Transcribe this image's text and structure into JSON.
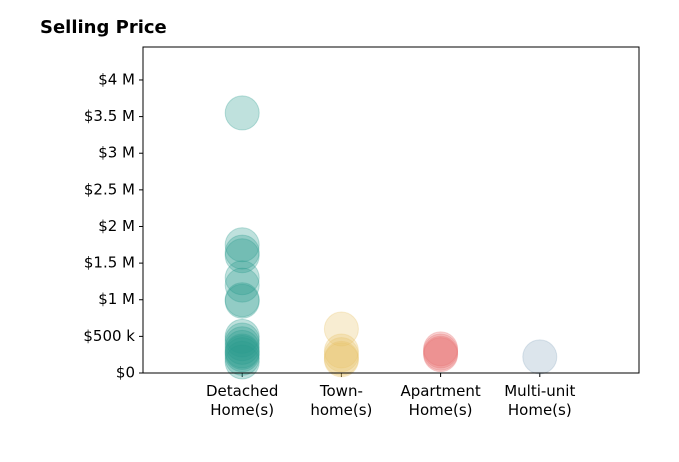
{
  "chart_data": {
    "type": "strip",
    "title": "Selling Price",
    "categories": [
      "Detached\nHome(s)",
      "Town-\nhome(s)",
      "Apartment\nHome(s)",
      "Multi-unit\nHome(s)"
    ],
    "values": [
      [
        3550000,
        1750000,
        1650000,
        1600000,
        1300000,
        1200000,
        1000000,
        980000,
        500000,
        450000,
        400000,
        350000,
        300000,
        280000,
        250000,
        200000,
        150000
      ],
      [
        600000,
        300000,
        250000,
        200000,
        180000
      ],
      [
        330000,
        300000,
        270000,
        250000
      ],
      [
        220000
      ]
    ],
    "colors": [
      "#2a9d8f",
      "#e9c46a",
      "#e76f71",
      "#8aa9bf"
    ],
    "marker_opacity": 0.3,
    "ylim": [
      0,
      4450000
    ],
    "yticks": [
      {
        "value": 0,
        "label": "$0"
      },
      {
        "value": 500000,
        "label": "$500 k"
      },
      {
        "value": 1000000,
        "label": "$1 M"
      },
      {
        "value": 1500000,
        "label": "$1.5 M"
      },
      {
        "value": 2000000,
        "label": "$2 M"
      },
      {
        "value": 2500000,
        "label": "$2.5 M"
      },
      {
        "value": 3000000,
        "label": "$3 M"
      },
      {
        "value": 3500000,
        "label": "$3.5 M"
      },
      {
        "value": 4000000,
        "label": "$4 M"
      }
    ]
  }
}
